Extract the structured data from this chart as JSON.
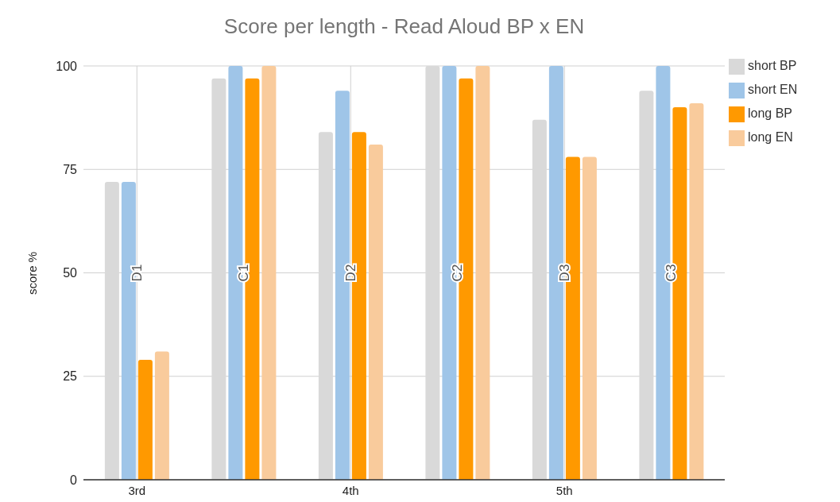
{
  "chart_data": {
    "type": "bar",
    "title": "Score per length - Read Aloud BP x EN",
    "ylabel": "score %",
    "categories": [
      "3rd",
      null,
      "4th",
      null,
      "5th",
      null
    ],
    "series": [
      {
        "name": "short BP",
        "color": "#d9d9d9",
        "values": [
          72,
          97,
          84,
          100,
          87,
          94
        ]
      },
      {
        "name": "short EN",
        "color": "#9fc5e8",
        "values": [
          72,
          100,
          94,
          100,
          100,
          100
        ]
      },
      {
        "name": "long BP",
        "color": "#ff9900",
        "values": [
          29,
          97,
          84,
          97,
          78,
          90
        ]
      },
      {
        "name": "long EN",
        "color": "#f9cb9c",
        "values": [
          31,
          100,
          81,
          100,
          78,
          91
        ]
      }
    ],
    "annotations": [
      "D1",
      "C1",
      "D2",
      "C2",
      "D3",
      "C3"
    ],
    "ylim": [
      0,
      100
    ],
    "yticks": [
      0,
      25,
      50,
      75,
      100
    ],
    "grid": true,
    "legend": "right"
  }
}
